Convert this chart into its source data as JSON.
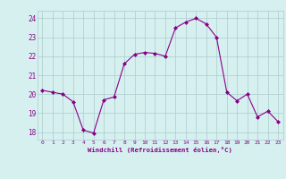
{
  "x": [
    0,
    1,
    2,
    3,
    4,
    5,
    6,
    7,
    8,
    9,
    10,
    11,
    12,
    13,
    14,
    15,
    16,
    17,
    18,
    19,
    20,
    21,
    22,
    23
  ],
  "y": [
    20.2,
    20.1,
    20.0,
    19.6,
    18.1,
    17.95,
    19.7,
    19.85,
    21.6,
    22.1,
    22.2,
    22.15,
    22.0,
    23.5,
    23.8,
    24.0,
    23.7,
    23.0,
    20.1,
    19.65,
    20.0,
    18.8,
    19.1,
    18.55
  ],
  "line_color": "#880088",
  "marker": "D",
  "marker_size": 2.0,
  "bg_color": "#d6f0f0",
  "grid_color": "#aacccc",
  "tick_label_color": "#880088",
  "xlabel": "Windchill (Refroidissement éolien,°C)",
  "xlabel_color": "#880088",
  "ylabel_ticks": [
    18,
    19,
    20,
    21,
    22,
    23,
    24
  ],
  "ylim": [
    17.6,
    24.4
  ],
  "xlim": [
    -0.5,
    23.5
  ],
  "font_family": "monospace"
}
